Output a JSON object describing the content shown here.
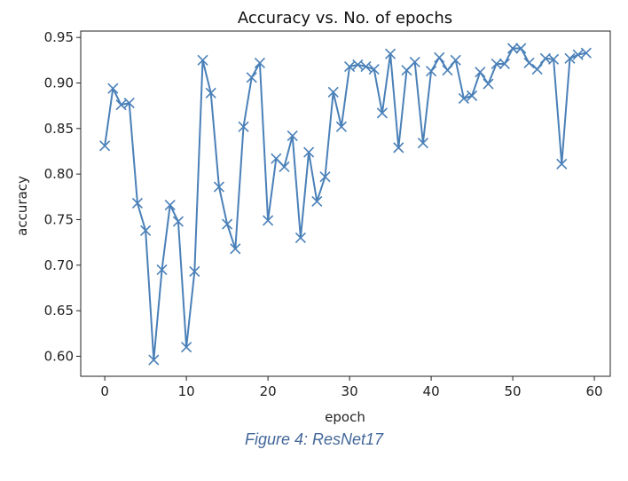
{
  "caption": "Figure 4: ResNet17",
  "chart_data": {
    "type": "line",
    "title": "Accuracy vs. No. of epochs",
    "xlabel": "epoch",
    "ylabel": "accuracy",
    "xlim": [
      -2.95,
      61.95
    ],
    "ylim": [
      0.578,
      0.957
    ],
    "xticks": [
      0,
      10,
      20,
      30,
      40,
      50,
      60
    ],
    "xtick_labels": [
      "0",
      "10",
      "20",
      "30",
      "40",
      "50",
      "60"
    ],
    "yticks": [
      0.6,
      0.65,
      0.7,
      0.75,
      0.8,
      0.85,
      0.9,
      0.95
    ],
    "ytick_labels": [
      "0.60",
      "0.65",
      "0.70",
      "0.75",
      "0.80",
      "0.85",
      "0.90",
      "0.95"
    ],
    "grid": false,
    "line_color": "#4a80b8",
    "marker": "x",
    "series": [
      {
        "name": "",
        "x": [
          0,
          1,
          2,
          3,
          4,
          5,
          6,
          7,
          8,
          9,
          10,
          11,
          12,
          13,
          14,
          15,
          16,
          17,
          18,
          19,
          20,
          21,
          22,
          23,
          24,
          25,
          26,
          27,
          28,
          29,
          30,
          31,
          32,
          33,
          34,
          35,
          36,
          37,
          38,
          39,
          40,
          41,
          42,
          43,
          44,
          45,
          46,
          47,
          48,
          49,
          50,
          51,
          52,
          53,
          54,
          55,
          56,
          57,
          58,
          59
        ],
        "values": [
          0.831,
          0.894,
          0.876,
          0.878,
          0.768,
          0.738,
          0.596,
          0.695,
          0.766,
          0.748,
          0.61,
          0.693,
          0.925,
          0.889,
          0.786,
          0.745,
          0.718,
          0.852,
          0.906,
          0.922,
          0.749,
          0.817,
          0.808,
          0.842,
          0.73,
          0.824,
          0.77,
          0.797,
          0.89,
          0.852,
          0.918,
          0.92,
          0.918,
          0.915,
          0.867,
          0.932,
          0.829,
          0.914,
          0.923,
          0.834,
          0.913,
          0.928,
          0.914,
          0.925,
          0.883,
          0.886,
          0.912,
          0.899,
          0.921,
          0.921,
          0.938,
          0.938,
          0.922,
          0.915,
          0.927,
          0.926,
          0.811,
          0.927,
          0.931,
          0.933
        ]
      }
    ]
  }
}
